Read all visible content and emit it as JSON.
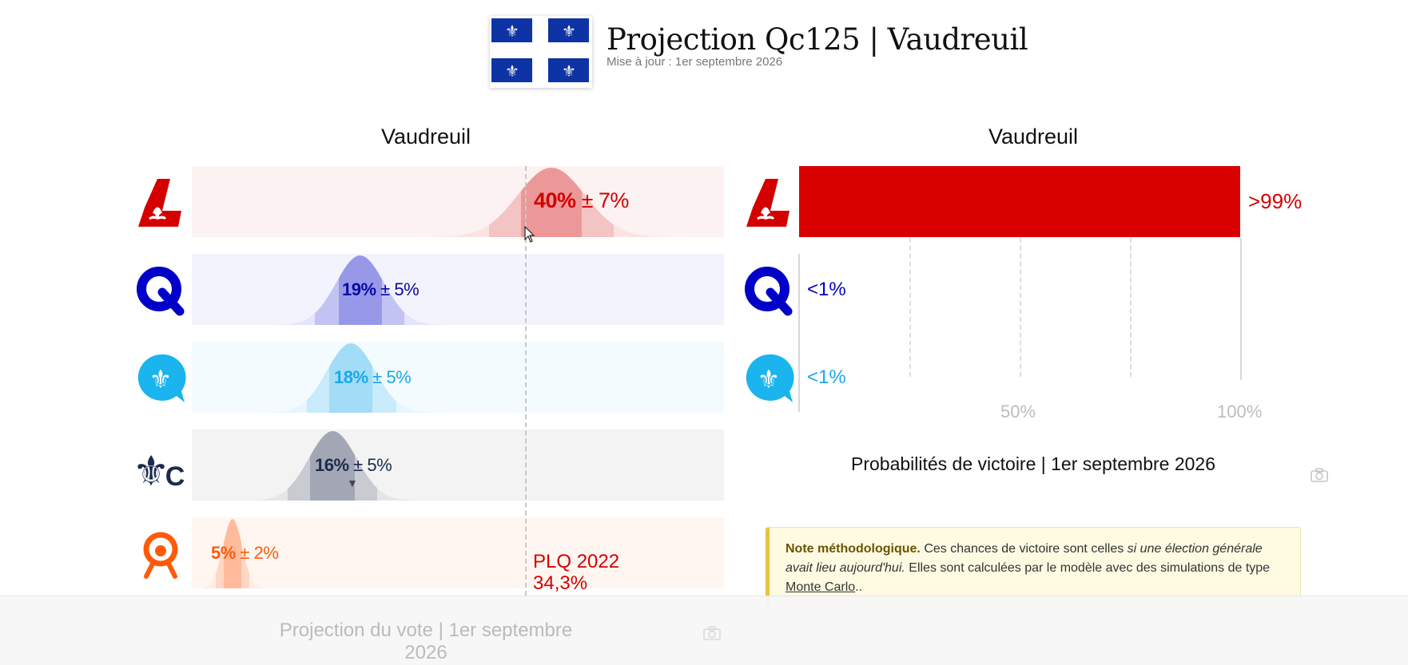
{
  "header": {
    "title": "Projection Qc125 | Vaudreuil",
    "updated": "Mise à jour : 1er septembre 2026"
  },
  "colors": {
    "flag_blue": "#0d33a5",
    "plq": "#d40000",
    "caq": "#0000c8",
    "pq": "#1aa8e8",
    "pcq": "#1b2a4e",
    "qs": "#ff5a0a"
  },
  "vote_chart": {
    "title": "Vaudreuil",
    "footer_title": "Projection du vote | 1er septembre 2026",
    "reference_label": "PLQ 2022",
    "reference_value": "34,3%",
    "reference_pct": 34.3,
    "camera_icon": "camera-icon"
  },
  "prob_chart": {
    "title": "Vaudreuil",
    "footer_title": "Probabilités de victoire | 1er septembre 2026",
    "ticks": [
      "50%",
      "100%"
    ],
    "camera_icon": "camera-icon"
  },
  "note": {
    "bold": "Note méthodologique.",
    "text1": " Ces chances de victoire sont celles ",
    "italic": "si une élection générale avait lieu aujourd'hui.",
    "text2": " Elles sont calculées par le modèle avec des simulations de type ",
    "link": "Monte Carlo",
    "text3": ".."
  },
  "chart_data": [
    {
      "type": "bar",
      "title": "Projection du vote | 1er septembre 2026",
      "subtitle": "Vaudreuil",
      "xlim": [
        0,
        100
      ],
      "categories": [
        "PLQ",
        "CAQ",
        "PQ",
        "PCQ",
        "QS"
      ],
      "series": [
        {
          "values": [
            40,
            19,
            18,
            16,
            5
          ],
          "labels": [
            "40%",
            "19%",
            "18%",
            "16%",
            "5%"
          ],
          "margins": [
            7,
            5,
            5,
            5,
            2
          ],
          "margin_labels": [
            "± 7%",
            "± 5%",
            "± 5%",
            "± 5%",
            "± 2%"
          ]
        }
      ],
      "reference_line": {
        "label": "PLQ 2022",
        "value_label": "34,3%",
        "value": 34.3
      }
    },
    {
      "type": "bar",
      "title": "Probabilités de victoire | 1er septembre 2026",
      "subtitle": "Vaudreuil",
      "categories": [
        "PLQ",
        "CAQ",
        "PQ"
      ],
      "values": [
        100,
        0,
        0
      ],
      "labels": [
        ">99%",
        "<1%",
        "<1%"
      ],
      "xlim": [
        0,
        100
      ],
      "xticks": [
        "50%",
        "100%"
      ]
    }
  ]
}
